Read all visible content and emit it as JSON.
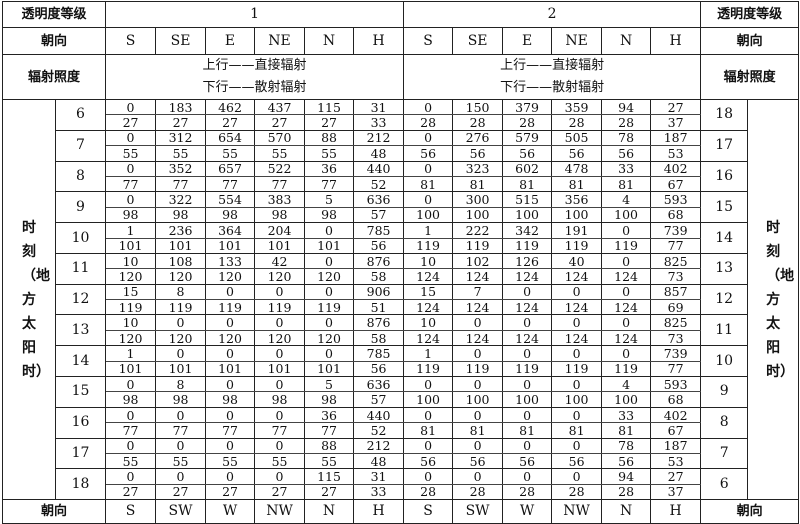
{
  "header": {
    "transparency_label": "透明度等级",
    "orientation_label": "朝向",
    "irradiance_label": "辐射照度",
    "grade1": "1",
    "grade2": "2",
    "legend_top": "上行——直接辐射",
    "legend_bottom": "下行——散射辐射",
    "time_label": "时刻（地方太阳时）",
    "top_orientations": [
      "S",
      "SE",
      "E",
      "NE",
      "N",
      "H"
    ],
    "bottom_orientations": [
      "S",
      "SW",
      "W",
      "NW",
      "N",
      "H"
    ]
  },
  "rows": [
    {
      "hour_left": "6",
      "hour_right": "18",
      "d1": [
        "0",
        "183",
        "462",
        "437",
        "115",
        "31"
      ],
      "s1": [
        "27",
        "27",
        "27",
        "27",
        "27",
        "33"
      ],
      "d2": [
        "0",
        "150",
        "379",
        "359",
        "94",
        "27"
      ],
      "s2": [
        "28",
        "28",
        "28",
        "28",
        "28",
        "37"
      ]
    },
    {
      "hour_left": "7",
      "hour_right": "17",
      "d1": [
        "0",
        "312",
        "654",
        "570",
        "88",
        "212"
      ],
      "s1": [
        "55",
        "55",
        "55",
        "55",
        "55",
        "48"
      ],
      "d2": [
        "0",
        "276",
        "579",
        "505",
        "78",
        "187"
      ],
      "s2": [
        "56",
        "56",
        "56",
        "56",
        "56",
        "53"
      ]
    },
    {
      "hour_left": "8",
      "hour_right": "16",
      "d1": [
        "0",
        "352",
        "657",
        "522",
        "36",
        "440"
      ],
      "s1": [
        "77",
        "77",
        "77",
        "77",
        "77",
        "52"
      ],
      "d2": [
        "0",
        "323",
        "602",
        "478",
        "33",
        "402"
      ],
      "s2": [
        "81",
        "81",
        "81",
        "81",
        "81",
        "67"
      ]
    },
    {
      "hour_left": "9",
      "hour_right": "15",
      "d1": [
        "0",
        "322",
        "554",
        "383",
        "5",
        "636"
      ],
      "s1": [
        "98",
        "98",
        "98",
        "98",
        "98",
        "57"
      ],
      "d2": [
        "0",
        "300",
        "515",
        "356",
        "4",
        "593"
      ],
      "s2": [
        "100",
        "100",
        "100",
        "100",
        "100",
        "68"
      ]
    },
    {
      "hour_left": "10",
      "hour_right": "14",
      "d1": [
        "1",
        "236",
        "364",
        "204",
        "0",
        "785"
      ],
      "s1": [
        "101",
        "101",
        "101",
        "101",
        "101",
        "56"
      ],
      "d2": [
        "1",
        "222",
        "342",
        "191",
        "0",
        "739"
      ],
      "s2": [
        "119",
        "119",
        "119",
        "119",
        "119",
        "77"
      ]
    },
    {
      "hour_left": "11",
      "hour_right": "13",
      "d1": [
        "10",
        "108",
        "133",
        "42",
        "0",
        "876"
      ],
      "s1": [
        "120",
        "120",
        "120",
        "120",
        "120",
        "58"
      ],
      "d2": [
        "10",
        "102",
        "126",
        "40",
        "0",
        "825"
      ],
      "s2": [
        "124",
        "124",
        "124",
        "124",
        "124",
        "73"
      ]
    },
    {
      "hour_left": "12",
      "hour_right": "12",
      "d1": [
        "15",
        "8",
        "0",
        "0",
        "0",
        "906"
      ],
      "s1": [
        "119",
        "119",
        "119",
        "119",
        "119",
        "51"
      ],
      "d2": [
        "15",
        "7",
        "0",
        "0",
        "0",
        "857"
      ],
      "s2": [
        "124",
        "124",
        "124",
        "124",
        "124",
        "69"
      ]
    },
    {
      "hour_left": "13",
      "hour_right": "11",
      "d1": [
        "10",
        "0",
        "0",
        "0",
        "0",
        "876"
      ],
      "s1": [
        "120",
        "120",
        "120",
        "120",
        "120",
        "58"
      ],
      "d2": [
        "10",
        "0",
        "0",
        "0",
        "0",
        "825"
      ],
      "s2": [
        "124",
        "124",
        "124",
        "124",
        "124",
        "73"
      ]
    },
    {
      "hour_left": "14",
      "hour_right": "10",
      "d1": [
        "1",
        "0",
        "0",
        "0",
        "0",
        "785"
      ],
      "s1": [
        "101",
        "101",
        "101",
        "101",
        "101",
        "56"
      ],
      "d2": [
        "1",
        "0",
        "0",
        "0",
        "0",
        "739"
      ],
      "s2": [
        "119",
        "119",
        "119",
        "119",
        "119",
        "77"
      ]
    },
    {
      "hour_left": "15",
      "hour_right": "9",
      "d1": [
        "0",
        "8",
        "0",
        "0",
        "5",
        "636"
      ],
      "s1": [
        "98",
        "98",
        "98",
        "98",
        "98",
        "57"
      ],
      "d2": [
        "0",
        "0",
        "0",
        "0",
        "4",
        "593"
      ],
      "s2": [
        "100",
        "100",
        "100",
        "100",
        "100",
        "68"
      ]
    },
    {
      "hour_left": "16",
      "hour_right": "8",
      "d1": [
        "0",
        "0",
        "0",
        "0",
        "36",
        "440"
      ],
      "s1": [
        "77",
        "77",
        "77",
        "77",
        "77",
        "52"
      ],
      "d2": [
        "0",
        "0",
        "0",
        "0",
        "33",
        "402"
      ],
      "s2": [
        "81",
        "81",
        "81",
        "81",
        "81",
        "67"
      ]
    },
    {
      "hour_left": "17",
      "hour_right": "7",
      "d1": [
        "0",
        "0",
        "0",
        "0",
        "88",
        "212"
      ],
      "s1": [
        "55",
        "55",
        "55",
        "55",
        "55",
        "48"
      ],
      "d2": [
        "0",
        "0",
        "0",
        "0",
        "78",
        "187"
      ],
      "s2": [
        "56",
        "56",
        "56",
        "56",
        "56",
        "53"
      ]
    },
    {
      "hour_left": "18",
      "hour_right": "6",
      "d1": [
        "0",
        "0",
        "0",
        "0",
        "115",
        "31"
      ],
      "s1": [
        "27",
        "27",
        "27",
        "27",
        "27",
        "33"
      ],
      "d2": [
        "0",
        "0",
        "0",
        "0",
        "94",
        "27"
      ],
      "s2": [
        "28",
        "28",
        "28",
        "28",
        "28",
        "37"
      ]
    }
  ]
}
